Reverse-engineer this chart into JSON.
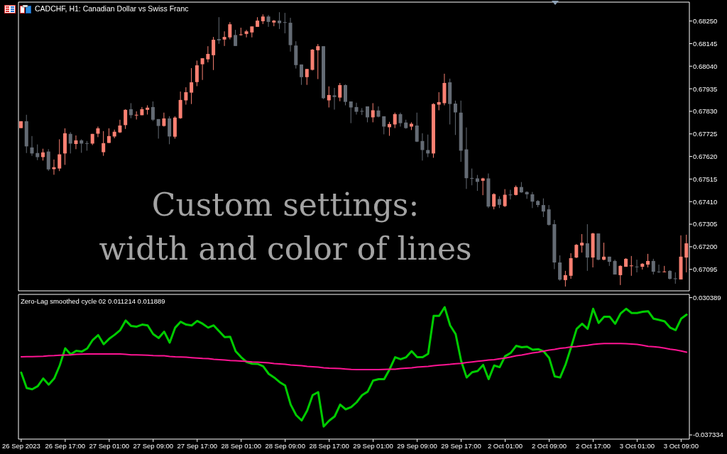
{
  "chart_data": [
    {
      "type": "candlestick",
      "title": "CADCHF, H1: Canadian Dollar vs Swiss Franc",
      "annotations": [
        "Custom settings:\nwidth and color of lines"
      ],
      "categories": [
        null,
        null,
        null,
        null,
        null,
        null,
        null,
        null,
        null,
        null,
        null,
        null,
        null,
        null,
        null,
        null,
        null,
        null,
        null,
        null,
        null,
        null,
        null,
        null,
        null,
        null,
        null,
        null,
        null,
        null,
        null,
        null,
        null,
        null,
        null,
        null,
        null,
        null,
        null,
        null,
        null,
        null,
        null,
        null,
        null,
        null,
        null,
        null,
        null,
        null,
        null,
        null,
        null,
        null,
        null,
        null,
        null,
        null,
        null,
        null,
        null,
        null,
        null,
        null,
        null,
        null,
        null,
        null,
        null,
        null,
        null,
        null,
        null,
        null,
        null,
        null,
        null,
        null,
        null,
        null,
        null,
        null,
        null,
        null,
        null,
        null,
        null,
        null,
        null,
        null,
        null,
        null,
        null,
        null,
        null,
        null,
        null,
        null,
        null,
        null,
        null,
        null,
        null,
        null,
        null,
        null,
        null,
        null,
        null,
        null,
        null,
        null,
        null,
        null,
        null,
        null,
        null,
        null,
        null,
        null,
        null,
        null
      ],
      "ohlc": [
        [
          0.67752,
          0.67784,
          0.67752,
          0.67784
        ],
        [
          0.67784,
          0.67814,
          0.67636,
          0.67667
        ],
        [
          0.67662,
          0.67715,
          0.67623,
          0.67634
        ],
        [
          0.67636,
          0.67676,
          0.67603,
          0.67617
        ],
        [
          0.67617,
          0.67656,
          0.67601,
          0.67639
        ],
        [
          0.67643,
          0.67654,
          0.67553,
          0.6756
        ],
        [
          0.67561,
          0.67606,
          0.67535,
          0.6757
        ],
        [
          0.67564,
          0.677,
          0.67552,
          0.6763
        ],
        [
          0.67634,
          0.67751,
          0.67581,
          0.67728
        ],
        [
          0.67725,
          0.67733,
          0.67634,
          0.6768
        ],
        [
          0.67678,
          0.67718,
          0.67654,
          0.67695
        ],
        [
          0.67695,
          0.677,
          0.67637,
          0.6768
        ],
        [
          0.67682,
          0.67692,
          0.67647,
          0.67681
        ],
        [
          0.6768,
          0.67725,
          0.67673,
          0.67725
        ],
        [
          0.67726,
          0.67759,
          0.6771,
          0.67751
        ],
        [
          0.6764,
          0.67738,
          0.67623,
          0.67682
        ],
        [
          0.67683,
          0.67751,
          0.67683,
          0.67715
        ],
        [
          0.67713,
          0.67745,
          0.67705,
          0.67735
        ],
        [
          0.67732,
          0.67791,
          0.67729,
          0.67764
        ],
        [
          0.67766,
          0.6784,
          0.67748,
          0.67837
        ],
        [
          0.6784,
          0.67868,
          0.67798,
          0.67812
        ],
        [
          0.67812,
          0.6783,
          0.67792,
          0.67814
        ],
        [
          0.67812,
          0.6785,
          0.67812,
          0.6784
        ],
        [
          0.67837,
          0.67858,
          0.67815,
          0.67847
        ],
        [
          0.6785,
          0.67876,
          0.67785,
          0.67791
        ],
        [
          0.67794,
          0.67794,
          0.67703,
          0.67762
        ],
        [
          0.67762,
          0.67824,
          0.67759,
          0.67797
        ],
        [
          0.67797,
          0.67807,
          0.67677,
          0.67713
        ],
        [
          0.67712,
          0.67807,
          0.67703,
          0.67801
        ],
        [
          0.67798,
          0.67922,
          0.67795,
          0.67883
        ],
        [
          0.67881,
          0.67942,
          0.67861,
          0.67919
        ],
        [
          0.67917,
          0.68031,
          0.67864,
          0.67965
        ],
        [
          0.67966,
          0.68066,
          0.67947,
          0.68044
        ],
        [
          0.68049,
          0.68077,
          0.67976,
          0.68077
        ],
        [
          0.68072,
          0.68133,
          0.68058,
          0.68097
        ],
        [
          0.68091,
          0.68176,
          0.68022,
          0.68163
        ],
        [
          0.68166,
          0.68268,
          0.68144,
          0.6816
        ],
        [
          0.68164,
          0.68202,
          0.68134,
          0.68176
        ],
        [
          0.68174,
          0.68245,
          0.68165,
          0.68235
        ],
        [
          0.68185,
          0.68209,
          0.68134,
          0.68134
        ],
        [
          0.68186,
          0.68219,
          0.68182,
          0.68188
        ],
        [
          0.6819,
          0.68209,
          0.68174,
          0.68202
        ],
        [
          0.68197,
          0.68225,
          0.68174,
          0.68225
        ],
        [
          0.68223,
          0.68268,
          0.68223,
          0.68252
        ],
        [
          0.68249,
          0.68281,
          0.68236,
          0.68271
        ],
        [
          0.68271,
          0.68278,
          0.68223,
          0.68246
        ],
        [
          0.68243,
          0.68255,
          0.68226,
          0.68252
        ],
        [
          0.68252,
          0.68291,
          0.68213,
          0.6824
        ],
        [
          0.68245,
          0.68288,
          0.68193,
          0.68243
        ],
        [
          0.68242,
          0.68265,
          0.68108,
          0.68138
        ],
        [
          0.68136,
          0.68156,
          0.68029,
          0.68045
        ],
        [
          0.68048,
          0.68048,
          0.67953,
          0.67989
        ],
        [
          0.67989,
          0.68027,
          0.67953,
          0.68027
        ],
        [
          0.68023,
          0.6812,
          0.6802,
          0.68117
        ],
        [
          0.68114,
          0.68143,
          0.6798,
          0.68133
        ],
        [
          0.68133,
          0.68133,
          0.67887,
          0.67891
        ],
        [
          0.67881,
          0.67946,
          0.67848,
          0.67906
        ],
        [
          0.67904,
          0.67939,
          0.67838,
          0.67897
        ],
        [
          0.67894,
          0.67962,
          0.67877,
          0.67952
        ],
        [
          0.67952,
          0.67955,
          0.67858,
          0.67874
        ],
        [
          0.67876,
          0.67876,
          0.67775,
          0.67848
        ],
        [
          0.6785,
          0.6787,
          0.67815,
          0.67828
        ],
        [
          0.67832,
          0.67845,
          0.67813,
          0.6783
        ],
        [
          0.67853,
          0.67853,
          0.67779,
          0.67802
        ],
        [
          0.67802,
          0.67868,
          0.67779,
          0.67835
        ],
        [
          0.67834,
          0.67853,
          0.67802,
          0.67805
        ],
        [
          0.67807,
          0.67807,
          0.67723,
          0.67759
        ],
        [
          0.67756,
          0.67781,
          0.67716,
          0.67771
        ],
        [
          0.67769,
          0.67824,
          0.67752,
          0.67817
        ],
        [
          0.67817,
          0.67824,
          0.67759,
          0.67775
        ],
        [
          0.67778,
          0.67791,
          0.67749,
          0.67752
        ],
        [
          0.67759,
          0.67779,
          0.67743,
          0.67772
        ],
        [
          0.67764,
          0.67824,
          0.67687,
          0.67689
        ],
        [
          0.67692,
          0.67728,
          0.67601,
          0.6765
        ],
        [
          0.6765,
          0.67722,
          0.67617,
          0.67634
        ],
        [
          0.67634,
          0.67868,
          0.67614,
          0.67864
        ],
        [
          0.67861,
          0.67919,
          0.67835,
          0.67873
        ],
        [
          0.67868,
          0.68005,
          0.67858,
          0.67962
        ],
        [
          0.67965,
          0.67982,
          0.67769,
          0.67864
        ],
        [
          0.67866,
          0.6788,
          0.6772,
          0.67825
        ],
        [
          0.67824,
          0.6788,
          0.67595,
          0.67647
        ],
        [
          0.67653,
          0.67755,
          0.67469,
          0.67519
        ],
        [
          0.6752,
          0.67564,
          0.67486,
          0.67518
        ],
        [
          0.67518,
          0.67534,
          0.6746,
          0.67502
        ],
        [
          0.67507,
          0.67521,
          0.6744,
          0.67518
        ],
        [
          0.67518,
          0.67541,
          0.6738,
          0.67387
        ],
        [
          0.67387,
          0.67449,
          0.67374,
          0.67445
        ],
        [
          0.67422,
          0.67435,
          0.6738,
          0.67395
        ],
        [
          0.67389,
          0.67468,
          0.67385,
          0.67442
        ],
        [
          0.67443,
          0.67465,
          0.6742,
          0.67441
        ],
        [
          0.67441,
          0.67485,
          0.67439,
          0.67478
        ],
        [
          0.67478,
          0.67501,
          0.67451,
          0.67453
        ],
        [
          0.67455,
          0.67458,
          0.67423,
          0.67444
        ],
        [
          0.67444,
          0.67455,
          0.6738,
          0.6741
        ],
        [
          0.67413,
          0.67417,
          0.67384,
          0.67394
        ],
        [
          0.67394,
          0.67425,
          0.67338,
          0.67364
        ],
        [
          0.67374,
          0.67394,
          0.67298,
          0.67302
        ],
        [
          0.67305,
          0.67325,
          0.67096,
          0.67127
        ],
        [
          0.67127,
          0.6716,
          0.67042,
          0.67047
        ],
        [
          0.67045,
          0.67088,
          0.67015,
          0.67068
        ],
        [
          0.67065,
          0.6717,
          0.67051,
          0.67147
        ],
        [
          0.6715,
          0.67213,
          0.67147,
          0.67209
        ],
        [
          0.67206,
          0.67259,
          0.67173,
          0.67219
        ],
        [
          0.67216,
          0.67305,
          0.67088,
          0.6715
        ],
        [
          0.6715,
          0.67265,
          0.67104,
          0.67262
        ],
        [
          0.67262,
          0.67262,
          0.67137,
          0.6714
        ],
        [
          0.6714,
          0.67219,
          0.67137,
          0.67154
        ],
        [
          0.67154,
          0.67154,
          0.67111,
          0.6713
        ],
        [
          0.67134,
          0.6714,
          0.67071,
          0.67071
        ],
        [
          0.67068,
          0.67114,
          0.67022,
          0.67111
        ],
        [
          0.67107,
          0.67147,
          0.67107,
          0.67144
        ],
        [
          0.6711,
          0.67157,
          0.67065,
          0.67113
        ],
        [
          0.67108,
          0.6714,
          0.67081,
          0.67106
        ],
        [
          0.67107,
          0.67124,
          0.67094,
          0.67121
        ],
        [
          0.67117,
          0.67167,
          0.67104,
          0.67134
        ],
        [
          0.67134,
          0.67144,
          0.67071,
          0.67084
        ],
        [
          0.67085,
          0.67117,
          0.67078,
          0.67083
        ],
        [
          0.67083,
          0.67111,
          0.67081,
          0.67085
        ],
        [
          0.67088,
          0.67091,
          0.67048,
          0.67051
        ],
        [
          0.67053,
          0.67081,
          0.67028,
          0.6705
        ],
        [
          0.67048,
          0.67253,
          0.67048,
          0.67154
        ],
        [
          0.6715,
          0.67256,
          0.67081,
          0.67216
        ]
      ],
      "colors": [
        "#fa8072",
        "#646b74",
        "#646b74",
        "#646b74",
        "#fa8072",
        "#646b74",
        "#fa8072",
        "#fa8072",
        "#fa8072",
        "#646b74",
        "#fa8072",
        "#646b74",
        "#646b74",
        "#fa8072",
        "#fa8072",
        "#fa8072",
        "#fa8072",
        "#fa8072",
        "#fa8072",
        "#fa8072",
        "#646b74",
        "#fa8072",
        "#fa8072",
        "#fa8072",
        "#646b74",
        "#646b74",
        "#fa8072",
        "#646b74",
        "#fa8072",
        "#fa8072",
        "#fa8072",
        "#fa8072",
        "#fa8072",
        "#fa8072",
        "#fa8072",
        "#fa8072",
        "#646b74",
        "#fa8072",
        "#fa8072",
        "#646b74",
        "#fa8072",
        "#fa8072",
        "#fa8072",
        "#fa8072",
        "#fa8072",
        "#646b74",
        "#fa8072",
        "#646b74",
        "#646b74",
        "#646b74",
        "#646b74",
        "#646b74",
        "#fa8072",
        "#fa8072",
        "#fa8072",
        "#646b74",
        "#fa8072",
        "#646b74",
        "#fa8072",
        "#646b74",
        "#646b74",
        "#646b74",
        "#646b74",
        "#646b74",
        "#fa8072",
        "#646b74",
        "#646b74",
        "#fa8072",
        "#fa8072",
        "#646b74",
        "#646b74",
        "#fa8072",
        "#646b74",
        "#646b74",
        "#646b74",
        "#fa8072",
        "#fa8072",
        "#fa8072",
        "#646b74",
        "#646b74",
        "#646b74",
        "#646b74",
        "#646b74",
        "#646b74",
        "#fa8072",
        "#646b74",
        "#fa8072",
        "#646b74",
        "#fa8072",
        "#646b74",
        "#fa8072",
        "#646b74",
        "#646b74",
        "#646b74",
        "#646b74",
        "#646b74",
        "#646b74",
        "#646b74",
        "#646b74",
        "#fa8072",
        "#fa8072",
        "#fa8072",
        "#fa8072",
        "#646b74",
        "#fa8072",
        "#646b74",
        "#fa8072",
        "#646b74",
        "#646b74",
        "#fa8072",
        "#fa8072",
        "#fa8072",
        "#646b74",
        "#fa8072",
        "#fa8072",
        "#646b74",
        "#646b74",
        "#fa8072",
        "#646b74",
        "#646b74",
        "#fa8072",
        "#fa8072"
      ],
      "ylim": [
        0.66995,
        0.68338
      ],
      "yticks": [
        {
          "value": 0.6825,
          "label": "0.68250"
        },
        {
          "value": 0.68145,
          "label": "0.68145"
        },
        {
          "value": 0.6804,
          "label": "0.68040"
        },
        {
          "value": 0.67935,
          "label": "0.67935"
        },
        {
          "value": 0.6783,
          "label": "0.67830"
        },
        {
          "value": 0.67725,
          "label": "0.67725"
        },
        {
          "value": 0.6762,
          "label": "0.67620"
        },
        {
          "value": 0.67515,
          "label": "0.67515"
        },
        {
          "value": 0.6741,
          "label": "0.67410"
        },
        {
          "value": 0.67305,
          "label": "0.67305"
        },
        {
          "value": 0.672,
          "label": "0.67200"
        },
        {
          "value": 0.67095,
          "label": "0.67095"
        }
      ]
    },
    {
      "type": "line",
      "title": "Zero-Lag smoothed cycle 02 0.011214 0.011889",
      "categories": [
        "26 Sep 2023",
        null,
        null,
        null,
        null,
        null,
        null,
        null,
        "26 Sep 17:00",
        null,
        null,
        null,
        null,
        null,
        null,
        null,
        "27 Sep 01:00",
        null,
        null,
        null,
        null,
        null,
        null,
        null,
        "27 Sep 09:00",
        null,
        null,
        null,
        null,
        null,
        null,
        null,
        "27 Sep 17:00",
        null,
        null,
        null,
        null,
        null,
        null,
        null,
        "28 Sep 01:00",
        null,
        null,
        null,
        null,
        null,
        null,
        null,
        "28 Sep 09:00",
        null,
        null,
        null,
        null,
        null,
        null,
        null,
        "28 Sep 17:00",
        null,
        null,
        null,
        null,
        null,
        null,
        null,
        "29 Sep 01:00",
        null,
        null,
        null,
        null,
        null,
        null,
        null,
        "29 Sep 09:00",
        null,
        null,
        null,
        null,
        null,
        null,
        null,
        "29 Sep 17:00",
        null,
        null,
        null,
        null,
        null,
        null,
        null,
        "2 Oct 01:00",
        null,
        null,
        null,
        null,
        null,
        null,
        null,
        "2 Oct 09:00",
        null,
        null,
        null,
        null,
        null,
        null,
        null,
        "2 Oct 17:00",
        null,
        null,
        null,
        null,
        null,
        null,
        null,
        "3 Oct 01:00",
        null,
        null,
        null,
        null,
        null,
        null,
        null,
        "3 Oct 09:00",
        null
      ],
      "series": [
        {
          "color": "#00cc00",
          "values": [
            -0.0066,
            -0.0142,
            -0.0148,
            -0.0133,
            -0.0095,
            -0.0125,
            -0.0095,
            -0.0031,
            0.0054,
            0.0024,
            0.0042,
            0.0038,
            0.0053,
            0.0095,
            0.0119,
            0.0074,
            0.0101,
            0.0121,
            0.0144,
            0.0191,
            0.0164,
            0.0161,
            0.0171,
            0.0167,
            0.0124,
            0.0105,
            0.0136,
            0.0082,
            0.0156,
            0.0185,
            0.0171,
            0.0167,
            0.0189,
            0.0175,
            0.0156,
            0.0167,
            0.0138,
            0.0109,
            0.0111,
            0.0039,
            0.001,
            -0.0014,
            -0.0022,
            -0.0023,
            -0.0035,
            -0.0072,
            -0.009,
            -0.0113,
            -0.013,
            -0.0224,
            -0.0276,
            -0.0302,
            -0.0253,
            -0.0177,
            -0.0162,
            -0.0332,
            -0.0303,
            -0.0282,
            -0.0224,
            -0.0247,
            -0.0236,
            -0.0212,
            -0.0177,
            -0.016,
            -0.0105,
            -0.0098,
            -0.0098,
            -0.0049,
            0.001,
            0.0,
            0.001,
            0.004,
            0.001,
            0.001,
            0.0027,
            0.0214,
            0.0214,
            0.0257,
            0.0167,
            0.0124,
            -0.0008,
            -0.009,
            -0.0064,
            -0.0058,
            -0.0028,
            -0.0098,
            -0.0031,
            -0.0039,
            0.0015,
            0.0031,
            0.0066,
            0.0059,
            0.0062,
            0.0047,
            0.005,
            0.0039,
            0.0007,
            -0.0084,
            -0.009,
            -0.0025,
            0.006,
            0.015,
            0.0175,
            0.015,
            0.0249,
            0.0179,
            0.021,
            0.021,
            0.0175,
            0.0226,
            0.0249,
            0.0228,
            0.0228,
            0.0234,
            0.0237,
            0.02,
            0.0194,
            0.0187,
            0.0156,
            0.0144,
            0.02,
            0.022
          ]
        },
        {
          "color": "#ff1493",
          "values": [
            0.0012,
            0.0013,
            0.0013,
            0.0014,
            0.0015,
            0.0017,
            0.0018,
            0.002,
            0.0021,
            0.0022,
            0.0024,
            0.0025,
            0.0026,
            0.0026,
            0.0026,
            0.0026,
            0.0026,
            0.0026,
            0.0026,
            0.0024,
            0.0022,
            0.0022,
            0.0021,
            0.002,
            0.0018,
            0.0017,
            0.0017,
            0.0014,
            0.0012,
            0.0011,
            0.001,
            0.0008,
            0.0006,
            0.0004,
            0.0003,
            0.0,
            -0.0002,
            -0.0004,
            -0.0006,
            -0.0007,
            -0.0009,
            -0.0011,
            -0.0013,
            -0.0014,
            -0.0016,
            -0.0018,
            -0.0021,
            -0.0023,
            -0.0025,
            -0.0028,
            -0.003,
            -0.0032,
            -0.0035,
            -0.0037,
            -0.0039,
            -0.0042,
            -0.0044,
            -0.0045,
            -0.0046,
            -0.0048,
            -0.005,
            -0.0051,
            -0.0051,
            -0.0051,
            -0.0051,
            -0.0051,
            -0.005,
            -0.0049,
            -0.0049,
            -0.0046,
            -0.0044,
            -0.0042,
            -0.0039,
            -0.0037,
            -0.0035,
            -0.0032,
            -0.0029,
            -0.0027,
            -0.0025,
            -0.0022,
            -0.002,
            -0.0016,
            -0.0013,
            -0.001,
            -0.0007,
            -0.0004,
            -0.0002,
            0.0002,
            0.0006,
            0.0011,
            0.0017,
            0.0021,
            0.0026,
            0.0031,
            0.0035,
            0.004,
            0.0045,
            0.0049,
            0.0054,
            0.0057,
            0.0061,
            0.0063,
            0.0066,
            0.0069,
            0.0073,
            0.0076,
            0.0078,
            0.0078,
            0.0078,
            0.0078,
            0.0077,
            0.0075,
            0.0073,
            0.0069,
            0.0064,
            0.0062,
            0.0059,
            0.0055,
            0.005,
            0.0046,
            0.0041,
            0.0035
          ]
        }
      ],
      "ylim": [
        -0.0394,
        0.032
      ],
      "yticks": [
        0.030389,
        -0.037334
      ]
    }
  ]
}
